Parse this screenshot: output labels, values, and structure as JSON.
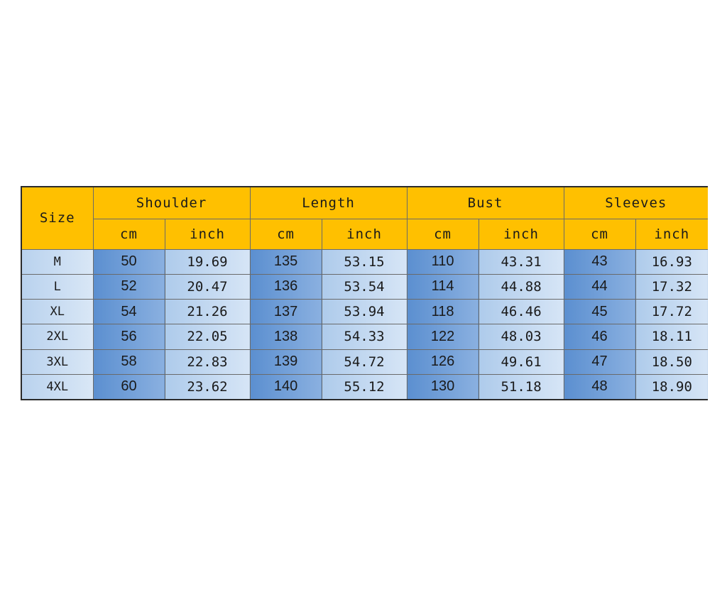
{
  "size_chart": {
    "size_header": "Size",
    "groups": [
      "Shoulder",
      "Length",
      "Bust",
      "Sleeves"
    ],
    "unit_cm": "cm",
    "unit_inch": "inch",
    "rows": [
      {
        "size": "M",
        "shoulder_cm": "50",
        "shoulder_in": "19.69",
        "length_cm": "135",
        "length_in": "53.15",
        "bust_cm": "110",
        "bust_in": "43.31",
        "sleeves_cm": "43",
        "sleeves_in": "16.93"
      },
      {
        "size": "L",
        "shoulder_cm": "52",
        "shoulder_in": "20.47",
        "length_cm": "136",
        "length_in": "53.54",
        "bust_cm": "114",
        "bust_in": "44.88",
        "sleeves_cm": "44",
        "sleeves_in": "17.32"
      },
      {
        "size": "XL",
        "shoulder_cm": "54",
        "shoulder_in": "21.26",
        "length_cm": "137",
        "length_in": "53.94",
        "bust_cm": "118",
        "bust_in": "46.46",
        "sleeves_cm": "45",
        "sleeves_in": "17.72"
      },
      {
        "size": "2XL",
        "shoulder_cm": "56",
        "shoulder_in": "22.05",
        "length_cm": "138",
        "length_in": "54.33",
        "bust_cm": "122",
        "bust_in": "48.03",
        "sleeves_cm": "46",
        "sleeves_in": "18.11"
      },
      {
        "size": "3XL",
        "shoulder_cm": "58",
        "shoulder_in": "22.83",
        "length_cm": "139",
        "length_in": "54.72",
        "bust_cm": "126",
        "bust_in": "49.61",
        "sleeves_cm": "47",
        "sleeves_in": "18.50"
      },
      {
        "size": "4XL",
        "shoulder_cm": "60",
        "shoulder_in": "23.62",
        "length_cm": "140",
        "length_in": "55.12",
        "bust_cm": "130",
        "bust_in": "51.18",
        "sleeves_cm": "48",
        "sleeves_in": "18.90"
      }
    ]
  },
  "colors": {
    "header_bg": "#ffc000",
    "cm_column": "#5b8fd0",
    "inch_column": "#aecbeb",
    "size_column": "#c8dcf2"
  }
}
